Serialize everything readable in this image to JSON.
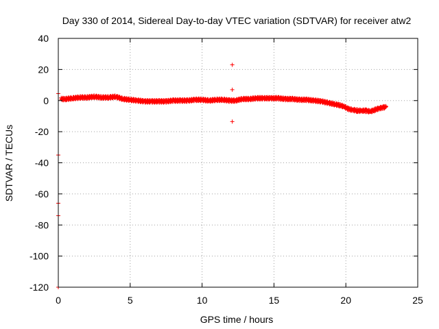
{
  "chart_data": {
    "type": "scatter",
    "title": "Day 330 of 2014, Sidereal Day-to-day VTEC variation (SDTVAR) for receiver atw2",
    "xlabel": "GPS time / hours",
    "ylabel": "SDTVAR / TECUs",
    "xlim": [
      0,
      25
    ],
    "ylim": [
      -120,
      40
    ],
    "xticks": [
      0,
      5,
      10,
      15,
      20,
      25
    ],
    "yticks": [
      -120,
      -100,
      -80,
      -60,
      -40,
      -20,
      0,
      20,
      40
    ],
    "grid": true,
    "marker": "+",
    "colors": {
      "series": "#ff0000",
      "grid": "#a0a0a0",
      "axis": "#000000"
    },
    "series": [
      {
        "name": "SDTVAR",
        "trend": {
          "x": [
            0.2,
            0.5,
            1.0,
            1.5,
            2.0,
            2.5,
            3.0,
            3.5,
            4.0,
            4.5,
            5.0,
            5.5,
            6.0,
            6.5,
            7.0,
            7.5,
            8.0,
            8.5,
            9.0,
            9.5,
            10.0,
            10.5,
            11.0,
            11.5,
            11.9,
            12.3,
            12.8,
            13.3,
            13.8,
            14.3,
            14.8,
            15.3,
            15.8,
            16.3,
            16.8,
            17.3,
            17.8,
            18.3,
            18.8,
            19.3,
            19.6,
            19.9,
            20.2,
            20.5,
            20.8,
            21.1,
            21.4,
            21.7,
            22.0,
            22.3,
            22.6,
            22.8
          ],
          "y": [
            1,
            1,
            1.5,
            2,
            2,
            2.5,
            2,
            2,
            2.5,
            1,
            0.5,
            0,
            -0.5,
            -0.5,
            -0.5,
            -0.5,
            0,
            0,
            0,
            0.5,
            0.5,
            0,
            0.5,
            0.5,
            0,
            0,
            1,
            1,
            1.5,
            1.5,
            1.5,
            1.5,
            1,
            1,
            0.5,
            0.5,
            0,
            -0.5,
            -1.5,
            -2.5,
            -3,
            -4,
            -5.5,
            -6,
            -6.5,
            -6.5,
            -6.5,
            -7,
            -6,
            -5,
            -4.5,
            -4
          ]
        },
        "spread": 0.8,
        "outliers": {
          "x": [
            0,
            0,
            0,
            0,
            0,
            12.1,
            12.1,
            12.1
          ],
          "y": [
            4.5,
            -35,
            -66,
            -74,
            -120,
            23,
            7,
            -13.5
          ]
        }
      }
    ]
  }
}
